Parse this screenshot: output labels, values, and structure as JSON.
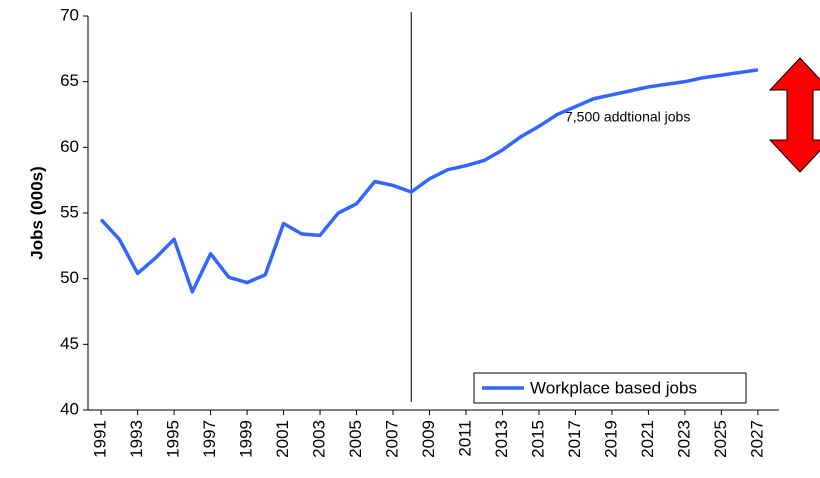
{
  "chart_data": {
    "type": "line",
    "y_axis_label": "Jobs (000s)",
    "annotation": "7,500 addtional jobs",
    "x": [
      1991,
      1992,
      1993,
      1994,
      1995,
      1996,
      1997,
      1998,
      1999,
      2000,
      2001,
      2002,
      2003,
      2004,
      2005,
      2006,
      2007,
      2008,
      2009,
      2010,
      2011,
      2012,
      2013,
      2014,
      2015,
      2016,
      2017,
      2018,
      2019,
      2020,
      2021,
      2022,
      2023,
      2024,
      2025,
      2026,
      2027
    ],
    "series": [
      {
        "name": "Workplace based jobs",
        "color": "#3366ff",
        "values": [
          54.5,
          53.0,
          50.4,
          51.6,
          53.0,
          49.0,
          51.9,
          50.1,
          49.7,
          50.3,
          54.2,
          53.4,
          53.3,
          55.0,
          55.7,
          57.4,
          57.1,
          56.6,
          57.6,
          58.3,
          58.6,
          59.0,
          59.8,
          60.8,
          61.6,
          62.5,
          63.1,
          63.7,
          64.0,
          64.3,
          64.6,
          64.8,
          65.0,
          65.3,
          65.5,
          65.7,
          65.9
        ]
      }
    ],
    "xlim": [
      1990.5,
      2027.5
    ],
    "xticks": [
      1991,
      1993,
      1995,
      1997,
      1999,
      2001,
      2003,
      2005,
      2007,
      2009,
      2011,
      2013,
      2015,
      2017,
      2019,
      2021,
      2023,
      2025,
      2027
    ],
    "ylim": [
      40,
      70
    ],
    "yticks": [
      40,
      45,
      50,
      55,
      60,
      65,
      70
    ],
    "vertical_line_x": 2008,
    "legend_position": "lower right"
  }
}
